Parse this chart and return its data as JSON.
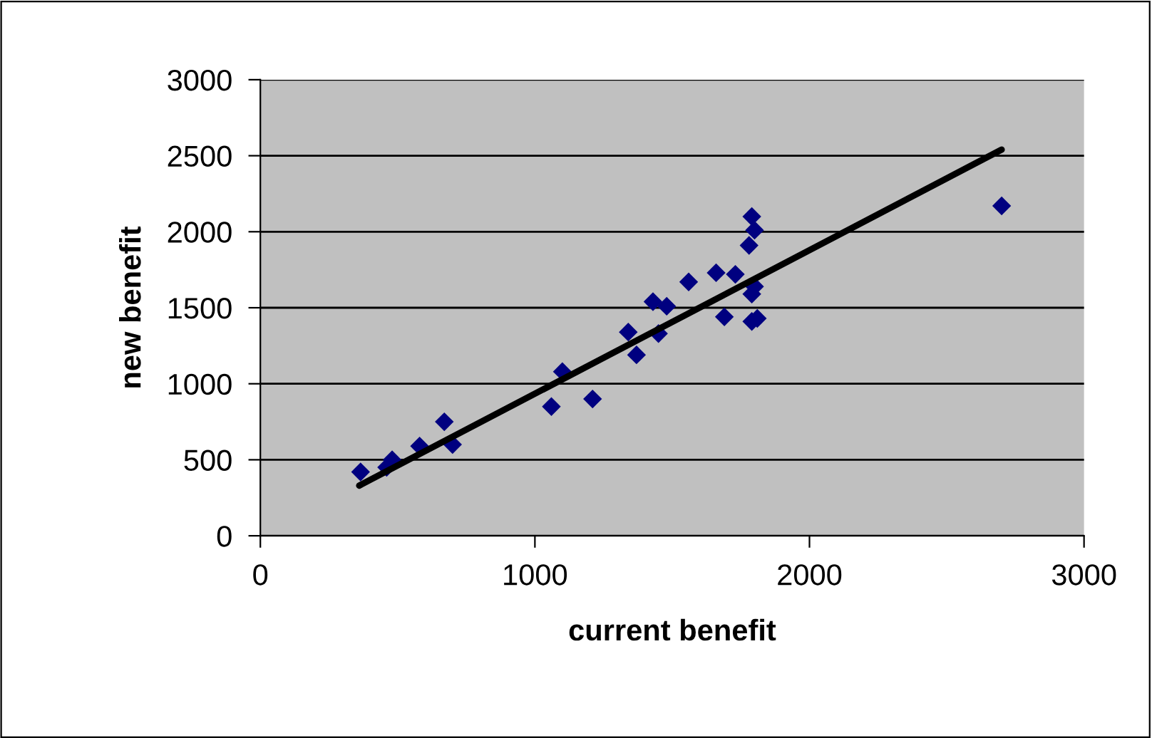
{
  "chart_data": {
    "type": "scatter",
    "xlabel": "current benefit",
    "ylabel": "new benefit",
    "xlim": [
      0,
      3000
    ],
    "xticks": [
      0,
      1000,
      2000,
      3000
    ],
    "ylim": [
      0,
      3000
    ],
    "yticks": [
      0,
      500,
      1000,
      1500,
      2000,
      2500,
      3000
    ],
    "grid": "y",
    "series": [
      {
        "color": "#000080",
        "marker": "diamond",
        "x": [
          365,
          460,
          480,
          580,
          670,
          700,
          1060,
          1100,
          1210,
          1340,
          1370,
          1430,
          1450,
          1480,
          1560,
          1660,
          1690,
          1730,
          1780,
          1790,
          1800,
          1790,
          1800,
          1790,
          1810,
          2700
        ],
        "values": [
          420,
          450,
          500,
          590,
          750,
          600,
          850,
          1080,
          900,
          1340,
          1190,
          1540,
          1330,
          1510,
          1670,
          1730,
          1440,
          1720,
          1910,
          2100,
          2010,
          1590,
          1640,
          1410,
          1430,
          2170
        ]
      },
      {
        "type": "line",
        "color": "#000000",
        "marker": "none",
        "line_style": "solid",
        "x": [
          360,
          2700
        ],
        "values": [
          330,
          2540
        ]
      }
    ]
  }
}
